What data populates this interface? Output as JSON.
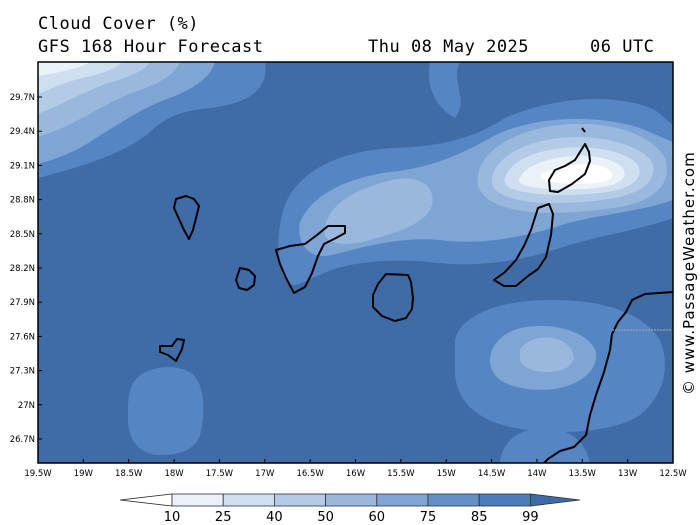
{
  "header": {
    "title": "Cloud Cover (%)",
    "subtitle": "GFS 168 Hour Forecast",
    "date": "Thu 08 May 2025",
    "time": "06 UTC"
  },
  "map": {
    "lat_labels": [
      "29.7N",
      "29.4N",
      "29.1N",
      "28.8N",
      "28.5N",
      "28.2N",
      "27.9N",
      "27.6N",
      "27.3N",
      "27N",
      "26.7N"
    ],
    "lon_labels": [
      "19.5W",
      "19W",
      "18.5W",
      "18W",
      "17.5W",
      "17W",
      "16.5W",
      "16W",
      "15.5W",
      "15W",
      "14.5W",
      "14W",
      "13.5W",
      "13W",
      "12.5W"
    ],
    "copyright": "© www.PassageWeather.com"
  },
  "legend": {
    "values": [
      "10",
      "25",
      "40",
      "50",
      "60",
      "75",
      "85",
      "99"
    ],
    "colors": [
      "#ffffff",
      "#eaf1f9",
      "#cfdff0",
      "#b3cbe7",
      "#9ab8de",
      "#7ea5d4",
      "#6390c8",
      "#4c7cbb",
      "#3d6aa9"
    ]
  },
  "palette": {
    "background": "#3f6ca6",
    "coast": "#000000"
  }
}
